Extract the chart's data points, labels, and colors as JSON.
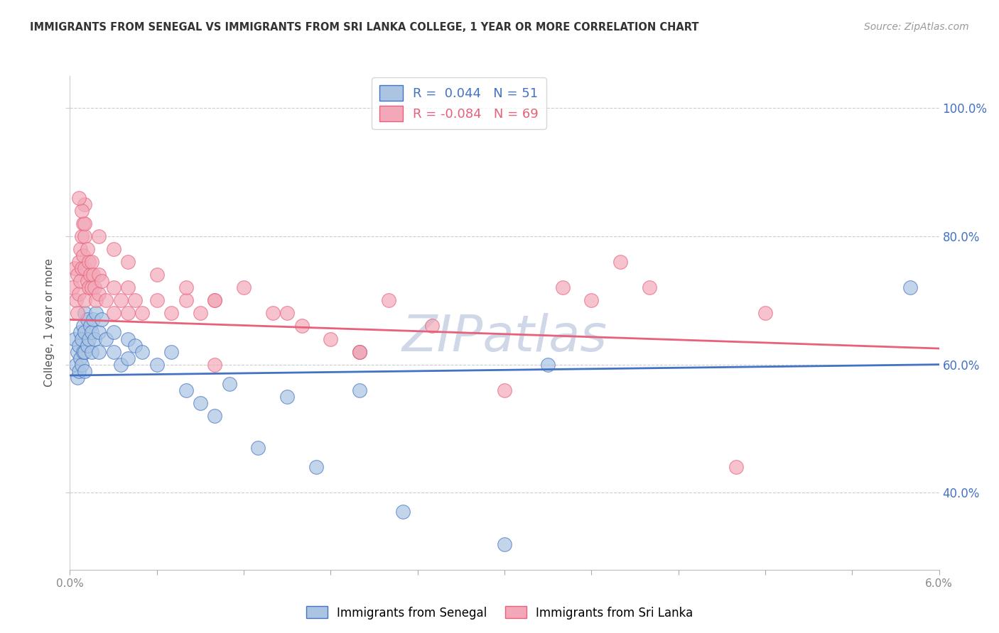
{
  "title": "IMMIGRANTS FROM SENEGAL VS IMMIGRANTS FROM SRI LANKA COLLEGE, 1 YEAR OR MORE CORRELATION CHART",
  "source": "Source: ZipAtlas.com",
  "ylabel": "College, 1 year or more",
  "xlim": [
    0.0,
    0.06
  ],
  "ylim": [
    0.28,
    1.05
  ],
  "yticks": [
    0.4,
    0.6,
    0.8,
    1.0
  ],
  "ytick_labels": [
    "40.0%",
    "60.0%",
    "80.0%",
    "100.0%"
  ],
  "xticks": [
    0.0,
    0.006,
    0.012,
    0.018,
    0.024,
    0.03,
    0.036,
    0.042,
    0.048,
    0.054,
    0.06
  ],
  "xtick_labels_show": [
    "0.0%",
    "",
    "",
    "",
    "",
    "",
    "",
    "",
    "",
    "",
    "6.0%"
  ],
  "grid_color": "#cccccc",
  "background_color": "#ffffff",
  "senegal_color": "#aac4e2",
  "srilanka_color": "#f2a8b8",
  "senegal_line_color": "#4472c4",
  "srilanka_line_color": "#e8607a",
  "senegal_R": 0.044,
  "senegal_N": 51,
  "srilanka_R": -0.084,
  "srilanka_N": 69,
  "senegal_x": [
    0.0003,
    0.0004,
    0.0005,
    0.0005,
    0.0006,
    0.0006,
    0.0007,
    0.0007,
    0.0008,
    0.0008,
    0.0009,
    0.0009,
    0.001,
    0.001,
    0.001,
    0.001,
    0.0012,
    0.0012,
    0.0013,
    0.0014,
    0.0015,
    0.0015,
    0.0016,
    0.0017,
    0.0018,
    0.002,
    0.002,
    0.0022,
    0.0025,
    0.003,
    0.003,
    0.0035,
    0.004,
    0.004,
    0.0045,
    0.005,
    0.006,
    0.007,
    0.008,
    0.009,
    0.01,
    0.011,
    0.013,
    0.015,
    0.017,
    0.02,
    0.023,
    0.03,
    0.033,
    0.02,
    0.058
  ],
  "senegal_y": [
    0.64,
    0.6,
    0.62,
    0.58,
    0.63,
    0.59,
    0.65,
    0.61,
    0.64,
    0.6,
    0.66,
    0.62,
    0.68,
    0.65,
    0.62,
    0.59,
    0.67,
    0.63,
    0.64,
    0.66,
    0.65,
    0.62,
    0.67,
    0.64,
    0.68,
    0.65,
    0.62,
    0.67,
    0.64,
    0.65,
    0.62,
    0.6,
    0.64,
    0.61,
    0.63,
    0.62,
    0.6,
    0.62,
    0.56,
    0.54,
    0.52,
    0.57,
    0.47,
    0.55,
    0.44,
    0.56,
    0.37,
    0.32,
    0.6,
    0.62,
    0.72
  ],
  "srilanka_x": [
    0.0002,
    0.0003,
    0.0004,
    0.0005,
    0.0005,
    0.0006,
    0.0006,
    0.0007,
    0.0007,
    0.0008,
    0.0008,
    0.0009,
    0.0009,
    0.001,
    0.001,
    0.001,
    0.001,
    0.0012,
    0.0012,
    0.0013,
    0.0013,
    0.0014,
    0.0015,
    0.0015,
    0.0016,
    0.0017,
    0.0018,
    0.002,
    0.002,
    0.0022,
    0.0025,
    0.003,
    0.003,
    0.0035,
    0.004,
    0.004,
    0.0045,
    0.005,
    0.006,
    0.007,
    0.008,
    0.009,
    0.01,
    0.012,
    0.014,
    0.016,
    0.018,
    0.02,
    0.022,
    0.025,
    0.03,
    0.02,
    0.015,
    0.01,
    0.008,
    0.006,
    0.004,
    0.003,
    0.002,
    0.001,
    0.0008,
    0.0006,
    0.034,
    0.036,
    0.046,
    0.048,
    0.038,
    0.04,
    0.01
  ],
  "srilanka_y": [
    0.72,
    0.75,
    0.7,
    0.74,
    0.68,
    0.76,
    0.71,
    0.78,
    0.73,
    0.8,
    0.75,
    0.82,
    0.77,
    0.85,
    0.8,
    0.75,
    0.7,
    0.78,
    0.73,
    0.76,
    0.72,
    0.74,
    0.76,
    0.72,
    0.74,
    0.72,
    0.7,
    0.74,
    0.71,
    0.73,
    0.7,
    0.72,
    0.68,
    0.7,
    0.72,
    0.68,
    0.7,
    0.68,
    0.7,
    0.68,
    0.7,
    0.68,
    0.7,
    0.72,
    0.68,
    0.66,
    0.64,
    0.62,
    0.7,
    0.66,
    0.56,
    0.62,
    0.68,
    0.7,
    0.72,
    0.74,
    0.76,
    0.78,
    0.8,
    0.82,
    0.84,
    0.86,
    0.72,
    0.7,
    0.44,
    0.68,
    0.76,
    0.72,
    0.6
  ],
  "watermark": "ZIPatlas",
  "watermark_color": "#d0d8e8",
  "title_color": "#333333",
  "axis_color": "#888888",
  "legend_R_senegal_color": "#4472c4",
  "legend_R_srilanka_color": "#e8607a",
  "right_axis_color": "#4472c4"
}
